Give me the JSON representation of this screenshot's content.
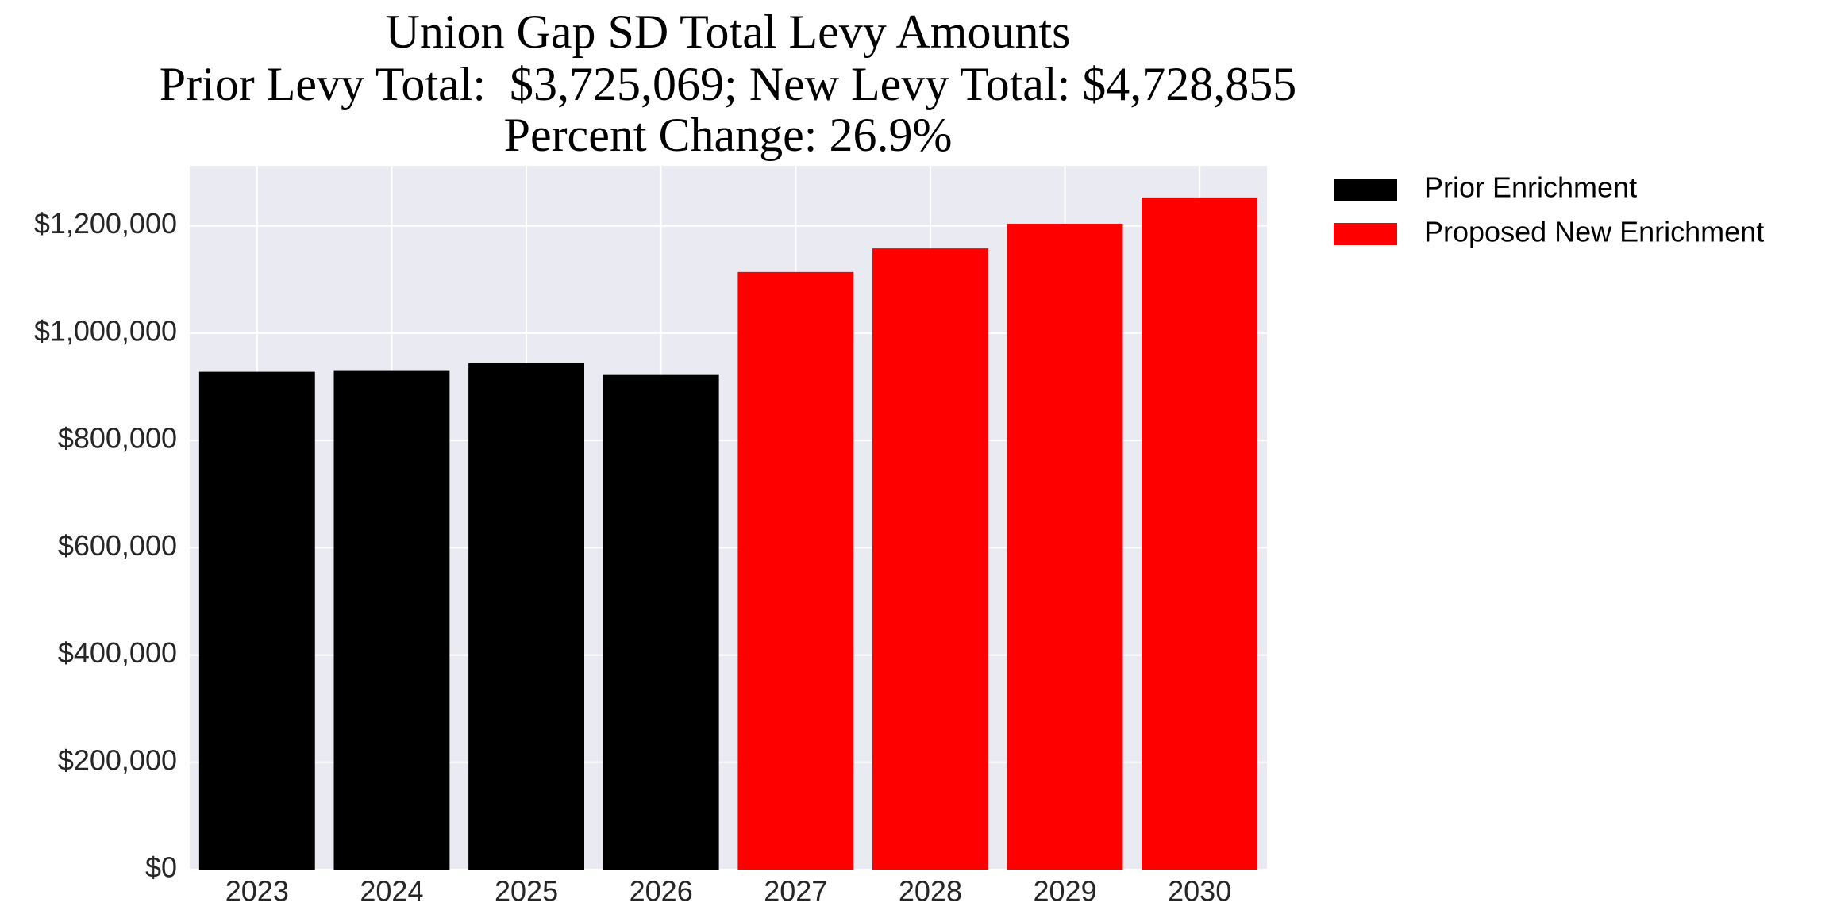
{
  "chart_data": {
    "type": "bar",
    "title": [
      "Union Gap SD Total Levy Amounts",
      "Prior Levy Total:  $3,725,069; New Levy Total: $4,728,855",
      "Percent Change: 26.9%"
    ],
    "categories": [
      "2023",
      "2024",
      "2025",
      "2026",
      "2027",
      "2028",
      "2029",
      "2030"
    ],
    "series": [
      {
        "name": "Prior Enrichment",
        "color": "#000000",
        "values": [
          928000,
          931000,
          944000,
          922000,
          null,
          null,
          null,
          null
        ]
      },
      {
        "name": "Proposed New Enrichment",
        "color": "#ff0000",
        "values": [
          null,
          null,
          null,
          null,
          1114000,
          1158000,
          1204000,
          1253000
        ]
      }
    ],
    "ylim": [
      0,
      1312000
    ],
    "yticks": [
      {
        "value": 0,
        "label": "$0"
      },
      {
        "value": 200000,
        "label": "$200,000"
      },
      {
        "value": 400000,
        "label": "$400,000"
      },
      {
        "value": 600000,
        "label": "$600,000"
      },
      {
        "value": 800000,
        "label": "$800,000"
      },
      {
        "value": 1000000,
        "label": "$1,000,000"
      },
      {
        "value": 1200000,
        "label": "$1,200,000"
      }
    ],
    "grid": true,
    "legend": "outside-right"
  }
}
